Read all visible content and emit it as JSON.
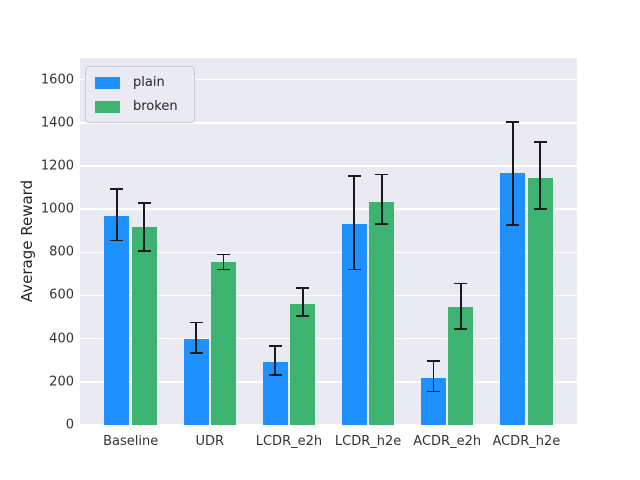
{
  "chart_data": {
    "type": "bar",
    "title": "",
    "xlabel": "",
    "ylabel": "Average Reward",
    "categories": [
      "Baseline",
      "UDR",
      "LCDR_e2h",
      "LCDR_h2e",
      "ACDR_e2h",
      "ACDR_h2e"
    ],
    "series": [
      {
        "name": "plain",
        "color": "#1E90FF",
        "values": [
          970,
          400,
          290,
          930,
          220,
          1165
        ],
        "err_low": [
          855,
          335,
          230,
          720,
          155,
          925
        ],
        "err_high": [
          1095,
          475,
          365,
          1155,
          295,
          1405
        ]
      },
      {
        "name": "broken",
        "color": "#3CB371",
        "values": [
          915,
          755,
          560,
          1035,
          545,
          1145
        ],
        "err_low": [
          805,
          720,
          505,
          930,
          445,
          1000
        ],
        "err_high": [
          1030,
          790,
          635,
          1160,
          655,
          1310
        ]
      }
    ],
    "ylim": [
      0,
      1700
    ],
    "yticks": [
      0,
      200,
      400,
      600,
      800,
      1000,
      1200,
      1400,
      1600
    ],
    "grid": true,
    "legend_position": "upper left",
    "errorbars": true,
    "colors": {
      "axes_background": "#EAEAF2",
      "grid": "#FFFFFF",
      "errorbar": "#1A1A1A",
      "text": "#262626",
      "figure_background": "#FFFFFF"
    }
  }
}
